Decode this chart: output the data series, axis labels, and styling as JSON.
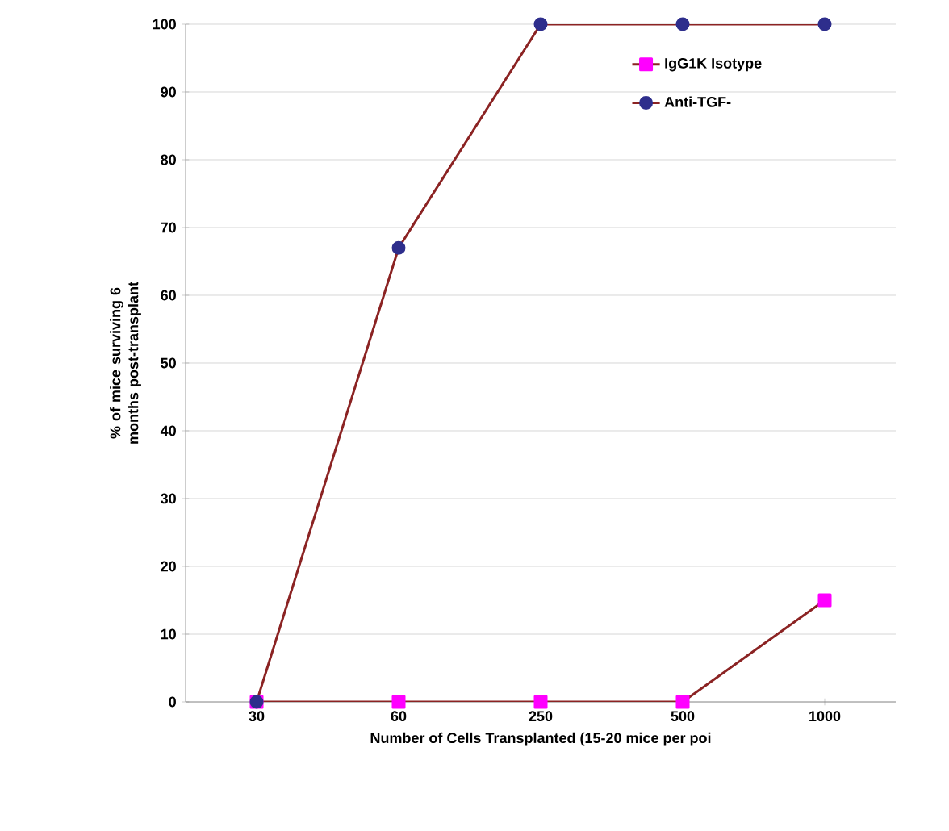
{
  "chart_data": {
    "type": "line",
    "xlabel": "Number of Cells Transplanted (15-20 mice per poi",
    "ylabel": "% of mice surviving 6 months post-transplant",
    "categories": [
      "30",
      "60",
      "250",
      "500",
      "1000"
    ],
    "series": [
      {
        "name": "IgG1K Isotype",
        "color": "#ff00ff",
        "marker": "square",
        "values": [
          0,
          0,
          0,
          0,
          15
        ]
      },
      {
        "name": "Anti-TGF-",
        "color": "#2e2e8c",
        "marker": "circle",
        "values": [
          0,
          67,
          100,
          100,
          100
        ]
      }
    ],
    "ylim": [
      0,
      100
    ],
    "yticks": [
      0,
      10,
      20,
      30,
      40,
      50,
      60,
      70,
      80,
      90,
      100
    ],
    "grid": "y",
    "legend": "top right",
    "line_style": "solid"
  }
}
